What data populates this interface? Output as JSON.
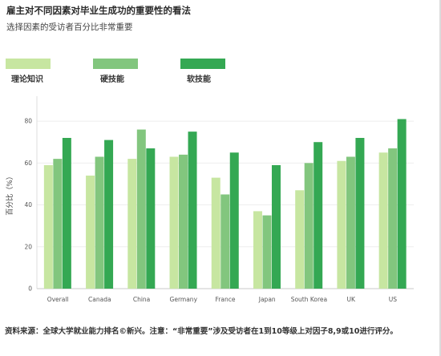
{
  "colors": {
    "theory": "#c7e6a1",
    "hard": "#82c67e",
    "soft": "#34a853"
  },
  "chart_data": {
    "type": "bar",
    "title": "雇主对不同因素对毕业生成功的重要性的看法",
    "subtitle": "选择因素的受访者百分比非常重要",
    "ylabel": "百分比（%）",
    "xlabel": "",
    "ylim": [
      0,
      90
    ],
    "yticks": [
      0,
      20,
      40,
      60,
      80
    ],
    "grid": true,
    "legend_position": "top-left",
    "categories": [
      "Overall",
      "Canada",
      "China",
      "Germany",
      "France",
      "Japan",
      "South Korea",
      "UK",
      "US"
    ],
    "series": [
      {
        "name": "理论知识",
        "values": [
          59,
          54,
          62,
          63,
          53,
          37,
          47,
          61,
          65
        ]
      },
      {
        "name": "硬技能",
        "values": [
          62,
          63,
          76,
          64,
          45,
          35,
          60,
          63,
          67
        ]
      },
      {
        "name": "软技能",
        "values": [
          72,
          71,
          67,
          75,
          65,
          59,
          70,
          72,
          81
        ]
      }
    ]
  },
  "source_note": "资料来源：全球大学就业能力排名©新兴。注意：“非常重要”涉及受访者在1到10等级上对因子8,9或10进行评分。"
}
